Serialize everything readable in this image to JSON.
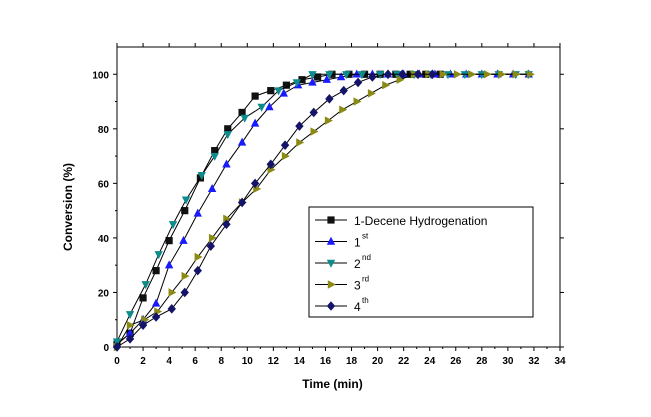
{
  "chart_data": {
    "type": "line",
    "title": "",
    "xlabel": "Time (min)",
    "ylabel": "Conversion (%)",
    "xlim": [
      0,
      34
    ],
    "ylim": [
      0,
      110
    ],
    "x_ticks": [
      0,
      2,
      4,
      6,
      8,
      10,
      12,
      14,
      16,
      18,
      20,
      22,
      24,
      26,
      28,
      30,
      32,
      34
    ],
    "y_ticks": [
      0,
      20,
      40,
      60,
      80,
      100
    ],
    "grid": false,
    "legend_position": "right",
    "series": [
      {
        "name": "1-Decene Hydrogenation",
        "label_main": "1-Decene Hydrogenation",
        "label_sup": "",
        "marker": "square",
        "color": "#111111",
        "line_color": "#000000",
        "x": [
          0,
          1,
          2,
          3,
          4,
          5.2,
          6.4,
          7.5,
          8.5,
          9.6,
          10.6,
          11.8,
          13,
          14.2,
          15.4,
          16.5,
          17.8,
          19,
          20.2,
          21.4,
          22.5,
          23.7,
          24.8
        ],
        "y": [
          1,
          5,
          18,
          28,
          39,
          50,
          62,
          72,
          80,
          86,
          92,
          94,
          96,
          98,
          99,
          100,
          100,
          100,
          100,
          100,
          100,
          100,
          100
        ]
      },
      {
        "name": "1st",
        "label_main": "1",
        "label_sup": "st",
        "marker": "triangle-up",
        "color": "#1a1aff",
        "line_color": "#000000",
        "x": [
          0,
          1,
          2,
          3,
          4,
          5.1,
          6.2,
          7.3,
          8.4,
          9.6,
          10.6,
          11.7,
          12.8,
          13.9,
          15,
          16.1,
          17.2,
          18.4,
          19.6,
          20.8,
          22,
          23.2,
          24.4,
          25.6,
          26.8,
          28,
          29.2,
          30.4,
          31.6
        ],
        "y": [
          1,
          5,
          10,
          16,
          30,
          39,
          49,
          58,
          67,
          75,
          82,
          88,
          93,
          96,
          97,
          98,
          99,
          100,
          100,
          100,
          100,
          100,
          100,
          100,
          100,
          100,
          100,
          100,
          100
        ]
      },
      {
        "name": "2nd",
        "label_main": "2",
        "label_sup": "nd",
        "marker": "triangle-down",
        "color": "#0e8c8c",
        "line_color": "#000000",
        "x": [
          0,
          1,
          2.2,
          3.2,
          4.3,
          5.3,
          6.5,
          7.5,
          8.5,
          9.8,
          11.1,
          12.4,
          13.8,
          15,
          16.3,
          17.6,
          18.8,
          20.2,
          21.5,
          22.8,
          24.1,
          25.4,
          26.7,
          28,
          29.3,
          30.6,
          31.6
        ],
        "y": [
          2,
          12,
          23,
          34,
          45,
          54,
          63,
          70,
          78,
          84,
          88,
          94,
          97,
          100,
          100,
          100,
          100,
          100,
          100,
          100,
          100,
          100,
          100,
          100,
          100,
          100,
          100
        ]
      },
      {
        "name": "3rd",
        "label_main": "3",
        "label_sup": "rd",
        "marker": "triangle-right",
        "color": "#8a8a14",
        "line_color": "#000000",
        "x": [
          0,
          1,
          2.1,
          3.1,
          4.2,
          5.2,
          6.2,
          7.3,
          8.4,
          9.6,
          10.7,
          11.8,
          12.9,
          14,
          15.1,
          16.2,
          17.3,
          18.4,
          19.5,
          20.6,
          21.7,
          22.8,
          23.9,
          25,
          26.1,
          27.2,
          28.4,
          29.5,
          30.6,
          31.7
        ],
        "y": [
          0,
          8,
          10,
          13,
          20,
          26,
          33,
          40,
          47,
          53,
          58,
          65,
          70,
          75,
          79,
          83,
          87,
          90,
          93,
          96,
          98,
          100,
          100,
          100,
          100,
          100,
          100,
          100,
          100,
          100
        ]
      },
      {
        "name": "4th",
        "label_main": "4",
        "label_sup": "th",
        "marker": "diamond",
        "color": "#141468",
        "line_color": "#000000",
        "x": [
          0,
          1,
          2,
          3,
          4.2,
          5.2,
          6.2,
          7.2,
          8.4,
          9.6,
          10.6,
          11.8,
          12.9,
          14,
          15.1,
          16.3,
          17.4,
          18.5,
          19.6,
          20.8,
          21.9,
          23.1,
          24.2
        ],
        "y": [
          0,
          3,
          8,
          11,
          14,
          20,
          28,
          37,
          45,
          53,
          60,
          67,
          74,
          81,
          86,
          91,
          94,
          97,
          99,
          100,
          100,
          100,
          100
        ]
      }
    ]
  }
}
